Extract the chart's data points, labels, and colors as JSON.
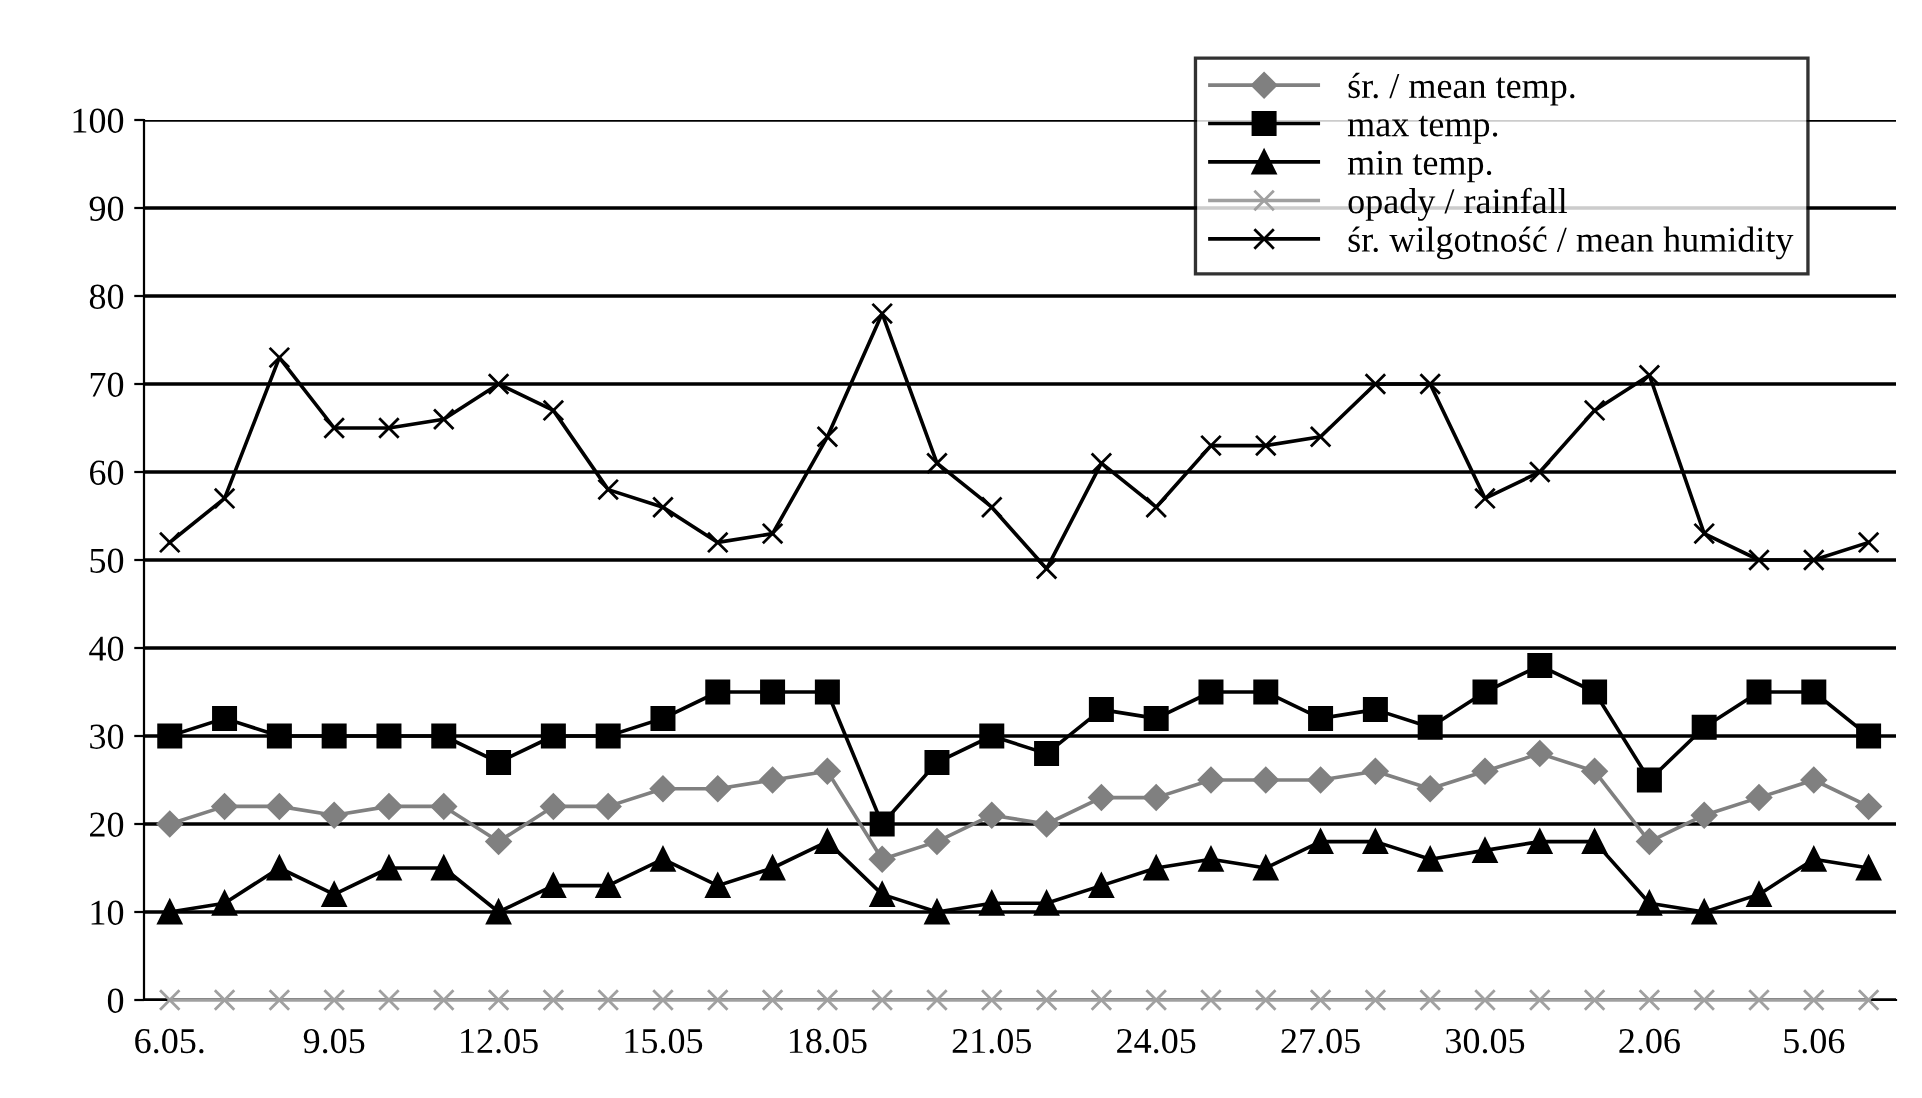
{
  "chart_data": {
    "type": "line",
    "categories": [
      "6.05.",
      null,
      null,
      "9.05",
      null,
      null,
      "12.05",
      null,
      null,
      "15.05",
      null,
      null,
      "18.05",
      null,
      null,
      "21.05",
      null,
      null,
      "24.05",
      null,
      null,
      "27.05",
      null,
      null,
      "30.05",
      null,
      null,
      "2.06",
      null,
      null,
      "5.06",
      null
    ],
    "series": [
      {
        "name": "śr. / mean temp.",
        "color": "#808080",
        "marker": "diamond",
        "values": [
          20,
          22,
          22,
          21,
          22,
          22,
          18,
          22,
          22,
          24,
          24,
          25,
          26,
          16,
          18,
          21,
          20,
          23,
          23,
          25,
          25,
          25,
          26,
          24,
          26,
          28,
          26,
          18,
          21,
          23,
          25,
          22
        ]
      },
      {
        "name": "max temp.",
        "color": "#000000",
        "marker": "square",
        "values": [
          30,
          32,
          30,
          30,
          30,
          30,
          27,
          30,
          30,
          32,
          35,
          35,
          35,
          20,
          27,
          30,
          28,
          33,
          32,
          35,
          35,
          32,
          33,
          31,
          35,
          38,
          35,
          25,
          31,
          35,
          35,
          30
        ]
      },
      {
        "name": "min temp.",
        "color": "#000000",
        "marker": "triangle",
        "values": [
          10,
          11,
          15,
          12,
          15,
          15,
          10,
          13,
          13,
          16,
          13,
          15,
          18,
          12,
          10,
          11,
          11,
          13,
          15,
          16,
          15,
          18,
          18,
          16,
          17,
          18,
          18,
          11,
          10,
          12,
          16,
          15
        ]
      },
      {
        "name": "opady / rainfall",
        "color": "#a0a0a0",
        "marker": "cross",
        "values": [
          0,
          0,
          0,
          0,
          0,
          0,
          0,
          0,
          0,
          0,
          0,
          0,
          0,
          0,
          0,
          0,
          0,
          0,
          0,
          0,
          0,
          0,
          0,
          0,
          0,
          0,
          0,
          0,
          0,
          0,
          0,
          0
        ]
      },
      {
        "name": "śr. wilgotność / mean humidity",
        "color": "#000000",
        "marker": "cross",
        "values": [
          52,
          57,
          73,
          65,
          65,
          66,
          70,
          67,
          58,
          56,
          52,
          53,
          64,
          78,
          61,
          56,
          49,
          61,
          56,
          63,
          63,
          64,
          70,
          70,
          57,
          60,
          67,
          71,
          53,
          50,
          50,
          52
        ]
      }
    ],
    "ylim": [
      0,
      100
    ],
    "yticks": [
      0,
      10,
      20,
      30,
      40,
      50,
      60,
      70,
      80,
      90,
      100
    ],
    "grid": "y",
    "legend": "top right",
    "line_style": "solid"
  }
}
